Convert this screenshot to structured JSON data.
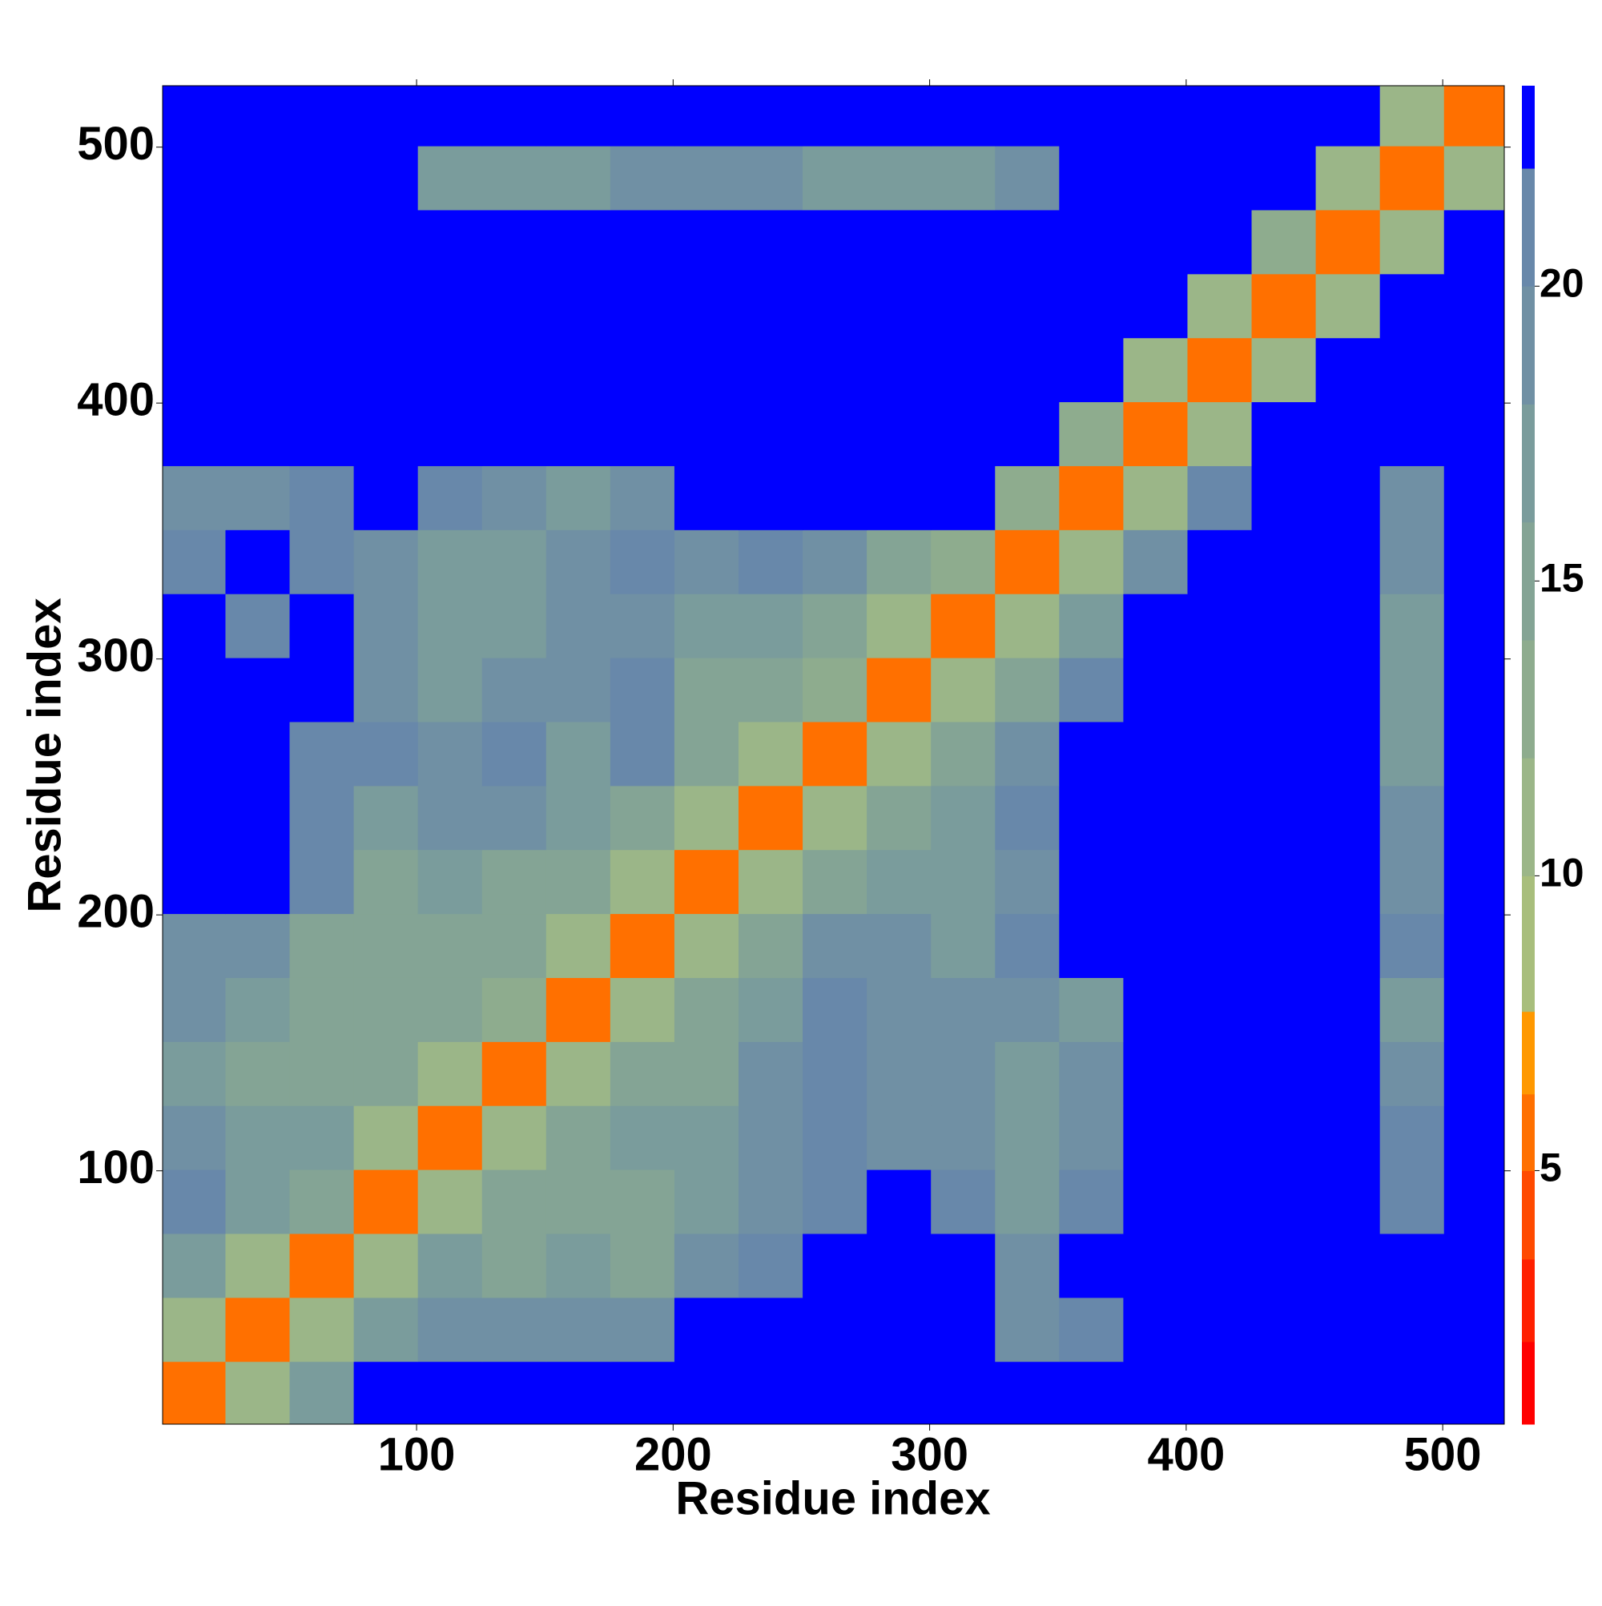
{
  "chart_data": {
    "type": "heatmap",
    "x_label": "Residue index",
    "y_label": "Residue index",
    "x": [
      13,
      38,
      63,
      88,
      113,
      138,
      163,
      188,
      213,
      238,
      263,
      288,
      313,
      338,
      363,
      388,
      413,
      438,
      463,
      488,
      513
    ],
    "y": [
      13,
      38,
      63,
      88,
      113,
      138,
      163,
      188,
      213,
      238,
      263,
      288,
      313,
      338,
      363,
      388,
      413,
      438,
      463,
      488,
      513
    ],
    "z": [
      [
        6,
        12,
        18,
        23,
        23,
        23,
        23,
        23,
        23,
        23,
        23,
        23,
        23,
        23,
        23,
        23,
        23,
        23,
        23,
        23,
        23
      ],
      [
        12,
        6,
        12,
        18,
        20,
        20,
        19,
        20,
        23,
        23,
        23,
        23,
        23,
        20,
        21,
        23,
        23,
        23,
        23,
        23,
        23
      ],
      [
        18,
        12,
        6,
        12,
        18,
        16,
        17,
        16,
        20,
        21,
        23,
        23,
        23,
        20,
        23,
        23,
        23,
        23,
        23,
        23,
        23
      ],
      [
        21,
        17,
        15,
        6,
        12,
        15,
        16,
        15,
        17,
        19,
        21,
        23,
        21,
        18,
        21,
        23,
        23,
        23,
        23,
        21,
        23
      ],
      [
        19,
        18,
        17,
        12,
        6,
        12,
        15,
        17,
        18,
        20,
        21,
        20,
        19,
        17,
        19,
        23,
        23,
        23,
        23,
        21,
        23
      ],
      [
        18,
        16,
        15,
        15,
        12,
        6,
        12,
        15,
        16,
        20,
        21,
        19,
        20,
        18,
        19,
        23,
        23,
        23,
        23,
        20,
        23
      ],
      [
        20,
        17,
        16,
        16,
        15,
        13,
        6,
        12,
        16,
        18,
        21,
        19,
        20,
        19,
        18,
        23,
        23,
        23,
        23,
        18,
        23
      ],
      [
        19,
        20,
        16,
        15,
        16,
        15,
        12,
        6,
        12,
        16,
        19,
        19,
        18,
        21,
        23,
        23,
        23,
        23,
        23,
        22,
        23
      ],
      [
        23,
        23,
        21,
        16,
        17,
        16,
        15,
        12,
        6,
        12,
        16,
        17,
        18,
        19,
        23,
        23,
        23,
        23,
        23,
        20,
        23
      ],
      [
        23,
        23,
        22,
        18,
        19,
        19,
        17,
        15,
        12,
        6,
        12,
        16,
        18,
        21,
        23,
        23,
        23,
        23,
        23,
        19,
        23
      ],
      [
        23,
        23,
        22,
        21,
        20,
        21,
        18,
        21,
        16,
        12,
        6,
        12,
        16,
        20,
        23,
        23,
        23,
        23,
        23,
        18,
        23
      ],
      [
        23,
        23,
        23,
        19,
        18,
        19,
        19,
        21,
        16,
        16,
        13,
        6,
        12,
        16,
        21,
        23,
        23,
        23,
        23,
        18,
        23
      ],
      [
        23,
        21,
        23,
        19,
        17,
        18,
        19,
        20,
        18,
        17,
        15,
        12,
        6,
        12,
        18,
        23,
        23,
        23,
        23,
        17,
        23
      ],
      [
        22,
        23,
        22,
        20,
        17,
        17,
        20,
        21,
        20,
        21,
        19,
        15,
        13,
        6,
        12,
        19,
        23,
        23,
        23,
        19,
        23
      ],
      [
        19,
        20,
        21,
        23,
        21,
        19,
        18,
        20,
        23,
        23,
        23,
        23,
        23,
        13,
        6,
        12,
        21,
        23,
        23,
        20,
        23
      ],
      [
        23,
        23,
        23,
        23,
        23,
        23,
        23,
        23,
        23,
        23,
        23,
        23,
        23,
        23,
        13,
        6,
        12,
        23,
        23,
        23,
        23
      ],
      [
        23,
        23,
        23,
        23,
        23,
        23,
        23,
        23,
        23,
        23,
        23,
        23,
        23,
        23,
        23,
        12,
        6,
        12,
        23,
        23,
        23
      ],
      [
        23,
        23,
        23,
        23,
        23,
        23,
        23,
        23,
        23,
        23,
        23,
        23,
        23,
        23,
        23,
        23,
        12,
        6,
        12,
        23,
        23
      ],
      [
        23,
        23,
        23,
        23,
        23,
        23,
        23,
        23,
        23,
        23,
        23,
        23,
        23,
        23,
        23,
        23,
        23,
        13,
        6,
        12,
        23
      ],
      [
        23,
        23,
        23,
        23,
        18,
        18,
        17,
        20,
        20,
        19,
        18,
        18,
        17,
        19,
        23,
        23,
        23,
        23,
        12,
        6,
        12
      ],
      [
        23,
        23,
        23,
        23,
        23,
        23,
        23,
        23,
        23,
        23,
        23,
        23,
        23,
        23,
        23,
        23,
        23,
        23,
        23,
        12,
        6
      ]
    ],
    "xlim": [
      1,
      524
    ],
    "ylim": [
      1,
      524
    ],
    "xticks": [
      100,
      200,
      300,
      400,
      500
    ],
    "yticks": [
      100,
      200,
      300,
      400,
      500
    ],
    "zlim": [
      0.7,
      23.4
    ],
    "zticks": [
      5,
      10,
      15,
      20
    ],
    "colorscale": [
      {
        "to": 2.1,
        "color": "#ff0000"
      },
      {
        "to": 3.5,
        "color": "#ff2000"
      },
      {
        "to": 5.0,
        "color": "#ff4a00"
      },
      {
        "to": 6.3,
        "color": "#ff7000"
      },
      {
        "to": 7.7,
        "color": "#ff9800"
      },
      {
        "to": 10,
        "color": "#a8be7c"
      },
      {
        "to": 12,
        "color": "#9bb688"
      },
      {
        "to": 14,
        "color": "#8eac8e"
      },
      {
        "to": 16,
        "color": "#84a495"
      },
      {
        "to": 18,
        "color": "#7a9c9c"
      },
      {
        "to": 20,
        "color": "#7090a4"
      },
      {
        "to": 22,
        "color": "#6888aa"
      },
      {
        "to": 23.4,
        "color": "#0000ff"
      }
    ]
  }
}
